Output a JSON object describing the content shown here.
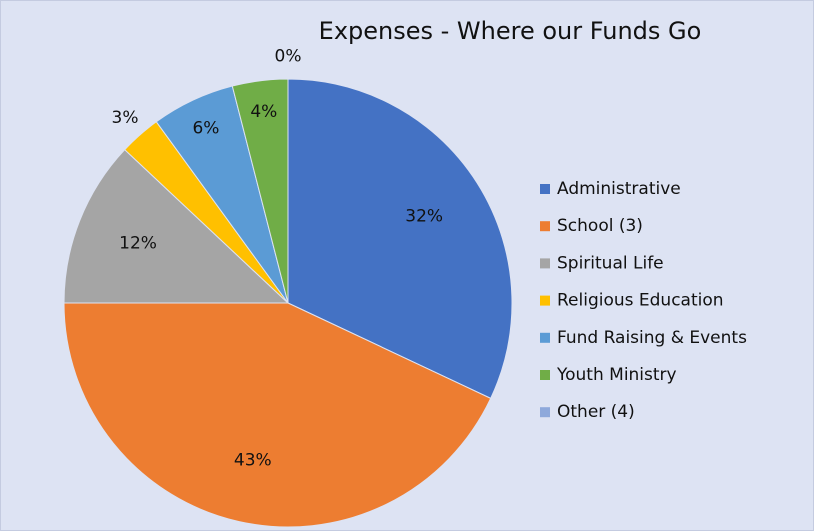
{
  "chart_data": {
    "type": "pie",
    "title": "Expenses - Where our Funds Go",
    "categories": [
      "Administrative",
      "School (3)",
      "Spiritual Life",
      "Religious Education",
      "Fund Raising & Events",
      "Youth Ministry",
      "Other (4)"
    ],
    "values": [
      32,
      43,
      12,
      3,
      6,
      4,
      0
    ],
    "value_labels": [
      "32%",
      "43%",
      "12%",
      "3%",
      "6%",
      "4%",
      "0%"
    ],
    "colors": [
      "#4472c4",
      "#ed7d31",
      "#a5a5a5",
      "#ffc000",
      "#5b9bd5",
      "#70ad47",
      "#8ea9db"
    ],
    "legend": "right"
  }
}
